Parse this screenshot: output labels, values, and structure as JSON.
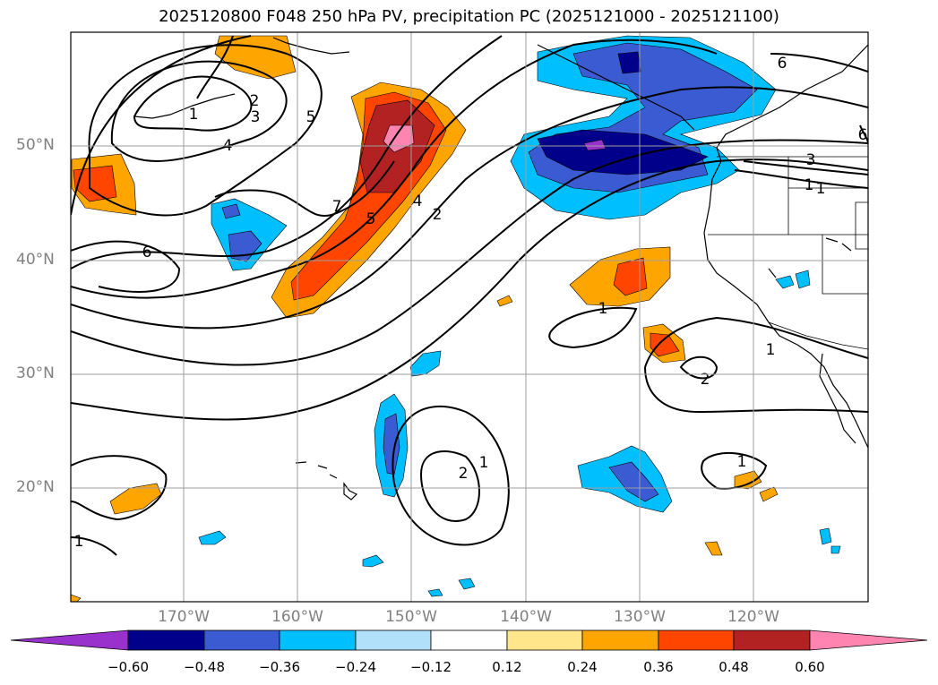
{
  "title": "2025120800 F048 250 hPa PV, precipitation PC (2025121000 - 2025121100)",
  "lat_labels": [
    "50°N",
    "40°N",
    "30°N",
    "20°N"
  ],
  "lon_labels": [
    "170°W",
    "160°W",
    "150°W",
    "140°W",
    "130°W",
    "120°W"
  ],
  "colorbar": {
    "ticks": [
      "−0.60",
      "−0.48",
      "−0.36",
      "−0.24",
      "−0.12",
      "0.12",
      "0.24",
      "0.36",
      "0.48",
      "0.60"
    ],
    "colors": [
      "#9932cc",
      "#00008b",
      "#3a5bd1",
      "#00bfff",
      "#b0e0fa",
      "#ffffff",
      "#ffe68a",
      "#ffa500",
      "#ff4500",
      "#b22222",
      "#ff85b0"
    ]
  },
  "contour_labels": [
    "1",
    "2",
    "3",
    "4",
    "5",
    "6",
    "7",
    "4",
    "5",
    "2",
    "1",
    "6",
    "1",
    "2",
    "1",
    "2",
    "1",
    "1",
    "1",
    "3",
    "6",
    "1"
  ]
}
